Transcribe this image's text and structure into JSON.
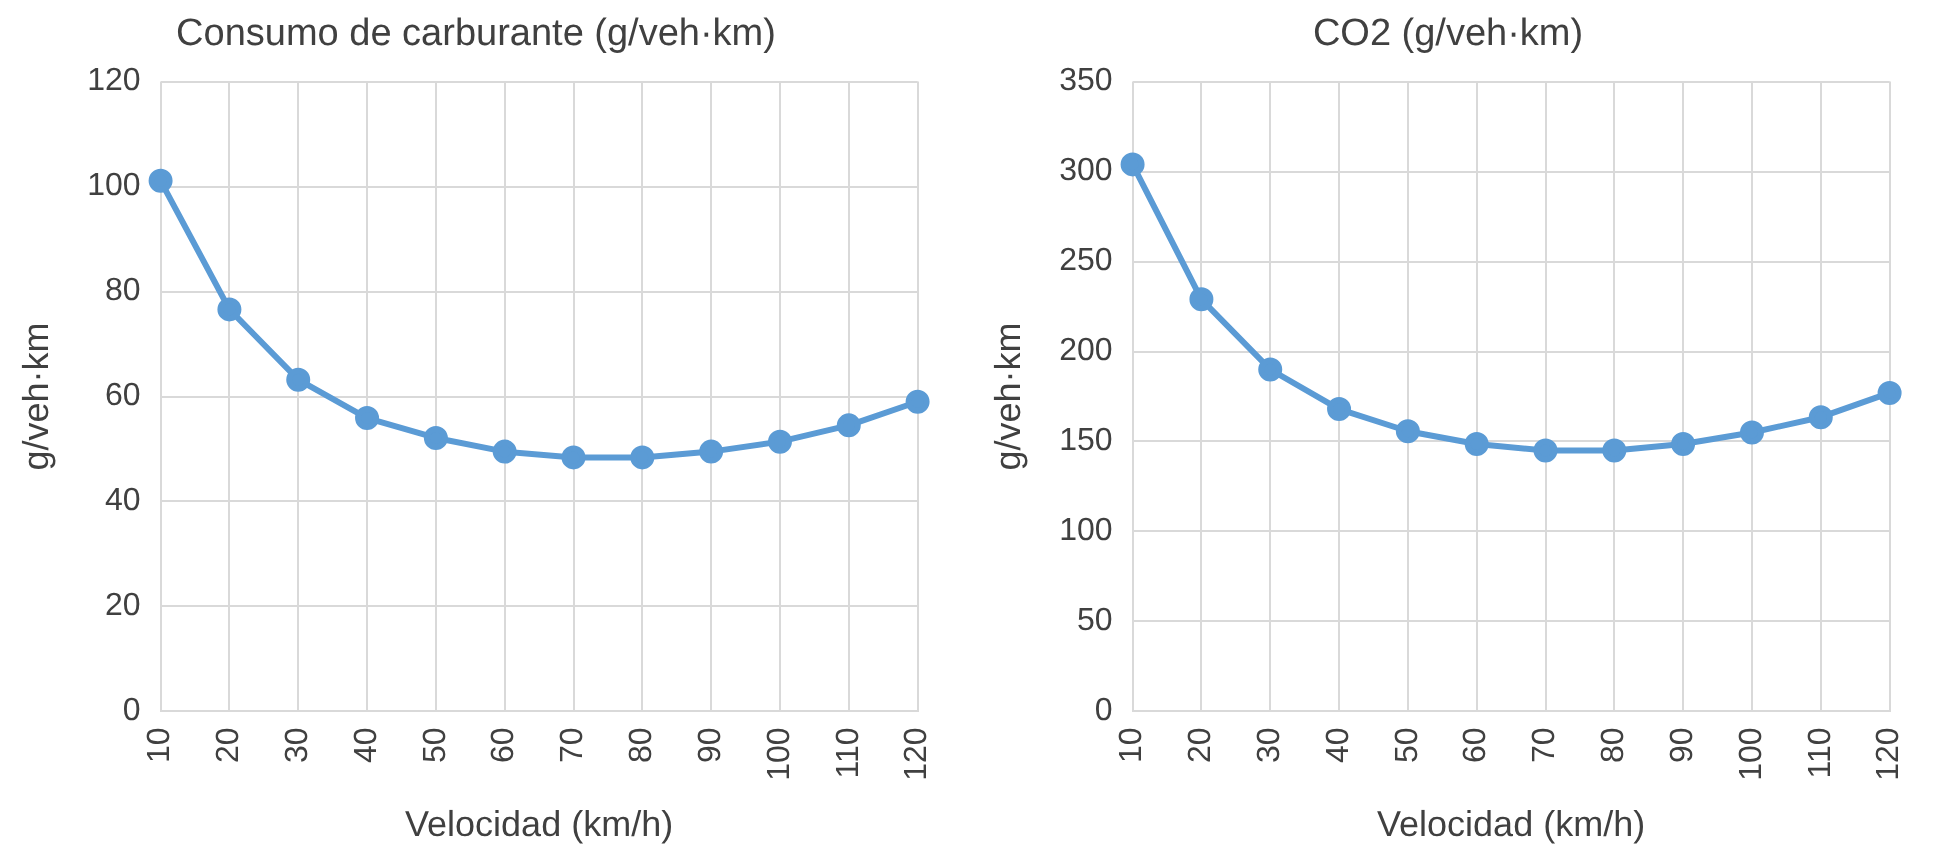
{
  "chart_data": [
    {
      "type": "line",
      "title": "Consumo de carburante (g/veh·km)",
      "xlabel": "Velocidad (km/h)",
      "ylabel": "g/veh·km",
      "categories": [
        "10",
        "20",
        "30",
        "40",
        "50",
        "60",
        "70",
        "80",
        "90",
        "100",
        "110",
        "120"
      ],
      "series": [
        {
          "color": "#5b9bd5",
          "values": [
            101.1,
            76.6,
            63.2,
            55.9,
            52.1,
            49.5,
            48.4,
            48.4,
            49.5,
            51.4,
            54.5,
            59.0
          ]
        }
      ],
      "ylim": [
        0,
        120
      ],
      "yticks": [
        0,
        20,
        40,
        60,
        80,
        100,
        120
      ],
      "grid": true,
      "legend": false,
      "marker": "circle",
      "line_style": "solid"
    },
    {
      "type": "line",
      "title": "CO2 (g/veh·km)",
      "xlabel": "Velocidad (km/h)",
      "ylabel": "g/veh·km",
      "categories": [
        "10",
        "20",
        "30",
        "40",
        "50",
        "60",
        "70",
        "80",
        "90",
        "100",
        "110",
        "120"
      ],
      "series": [
        {
          "color": "#5b9bd5",
          "values": [
            304,
            229,
            190,
            168,
            155.7,
            148.6,
            145,
            145,
            148.6,
            155,
            163.5,
            177
          ]
        }
      ],
      "ylim": [
        0,
        350
      ],
      "yticks": [
        0,
        50,
        100,
        150,
        200,
        250,
        300,
        350
      ],
      "grid": true,
      "legend": false,
      "marker": "circle",
      "line_style": "solid"
    }
  ]
}
